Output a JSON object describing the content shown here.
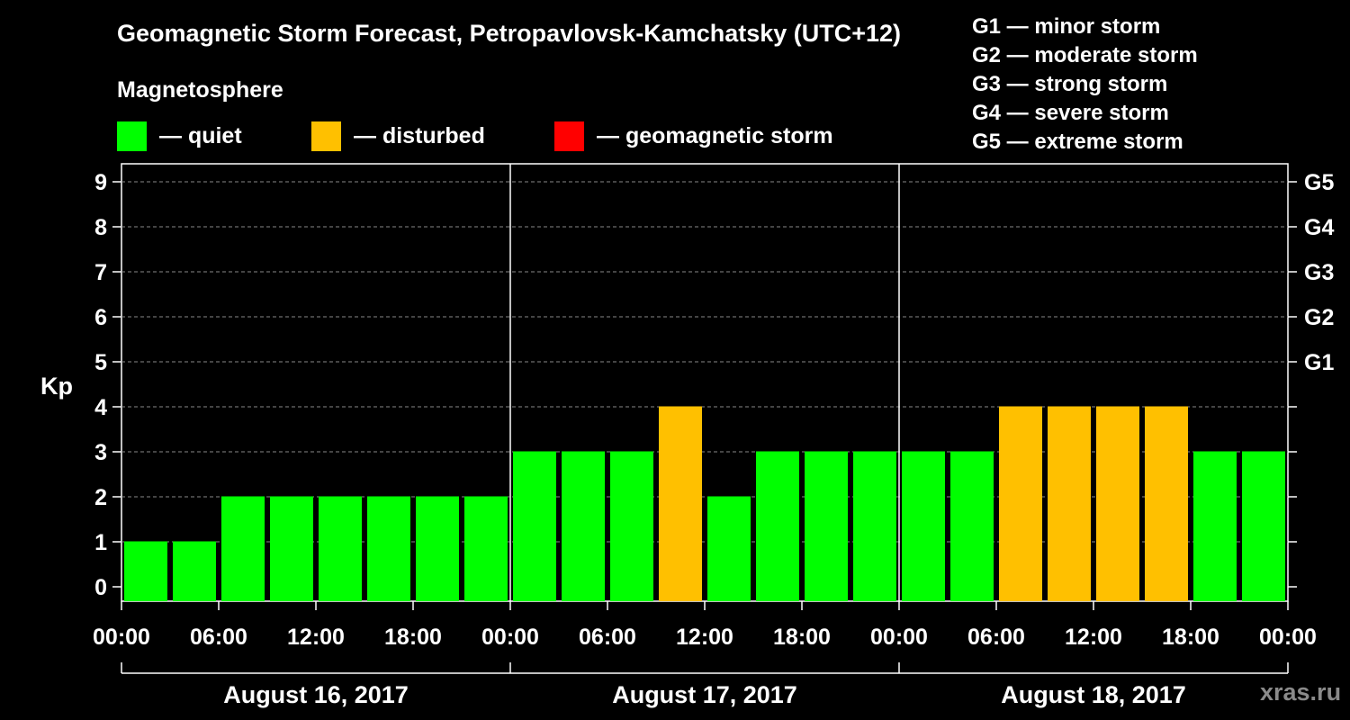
{
  "title": "Geomagnetic Storm Forecast, Petropavlovsk-Kamchatsky (UTC+12)",
  "subtitle": "Magnetosphere",
  "legend": [
    {
      "color": "#00ff00",
      "label": "— quiet"
    },
    {
      "color": "#ffc000",
      "label": "— disturbed"
    },
    {
      "color": "#ff0000",
      "label": "— geomagnetic storm"
    }
  ],
  "storm_levels": [
    "G1 — minor storm",
    "G2 — moderate storm",
    "G3 — strong storm",
    "G4 — severe storm",
    "G5 — extreme storm"
  ],
  "watermark": "xras.ru",
  "chart_data": {
    "type": "bar",
    "ylabel": "Kp",
    "ylim": [
      0,
      9
    ],
    "yticks": [
      0,
      1,
      2,
      3,
      4,
      5,
      6,
      7,
      8,
      9
    ],
    "right_ticks": [
      {
        "value": 5,
        "label": "G1"
      },
      {
        "value": 6,
        "label": "G2"
      },
      {
        "value": 7,
        "label": "G3"
      },
      {
        "value": 8,
        "label": "G4"
      },
      {
        "value": 9,
        "label": "G5"
      }
    ],
    "xtick_labels": [
      "00:00",
      "06:00",
      "12:00",
      "18:00",
      "00:00",
      "06:00",
      "12:00",
      "18:00",
      "00:00",
      "06:00",
      "12:00",
      "18:00",
      "00:00"
    ],
    "days": [
      "August 16, 2017",
      "August 17, 2017",
      "August 18, 2017"
    ],
    "values": [
      1,
      1,
      2,
      2,
      2,
      2,
      2,
      2,
      3,
      3,
      3,
      4,
      2,
      3,
      3,
      3,
      3,
      3,
      4,
      4,
      4,
      4,
      3,
      3
    ],
    "status": [
      "quiet",
      "quiet",
      "quiet",
      "quiet",
      "quiet",
      "quiet",
      "quiet",
      "quiet",
      "quiet",
      "quiet",
      "quiet",
      "disturbed",
      "quiet",
      "quiet",
      "quiet",
      "quiet",
      "quiet",
      "quiet",
      "disturbed",
      "disturbed",
      "disturbed",
      "disturbed",
      "quiet",
      "quiet"
    ],
    "colors": {
      "quiet": "#00ff00",
      "disturbed": "#ffc000",
      "storm": "#ff0000"
    },
    "grid": true
  }
}
